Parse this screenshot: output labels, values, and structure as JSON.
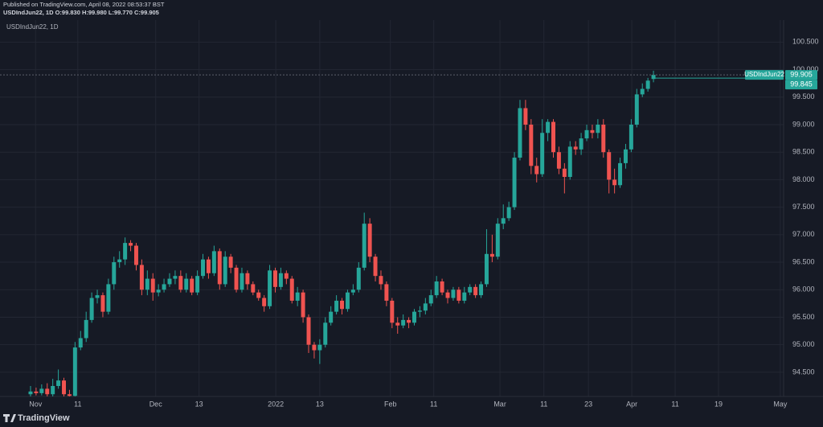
{
  "header": {
    "published": "Published on TradingView.com, April 08, 2022 08:53:37 BST",
    "legend": "USDIndJun22, 1D O:99.830 H:99.980 L:99.770 C:99.905"
  },
  "chart_data": {
    "type": "candlestick",
    "title": "USDIndJun22, 1D",
    "up_color": "#26a69a",
    "down_color": "#ef5350",
    "open": [
      94.1,
      94.15,
      94.12,
      94.2,
      94.1,
      94.25,
      94.35,
      94.1,
      94.07,
      94.95,
      95.12,
      95.45,
      95.85,
      95.9,
      95.6,
      96.1,
      96.5,
      96.55,
      96.85,
      96.8,
      96.45,
      96.0,
      96.2,
      95.95,
      96.0,
      96.1,
      96.2,
      96.25,
      96.0,
      96.2,
      95.95,
      96.25,
      96.55,
      96.3,
      96.7,
      96.1,
      96.6,
      96.4,
      96.0,
      96.3,
      96.1,
      95.95,
      95.85,
      95.7,
      96.35,
      96.05,
      96.3,
      96.2,
      95.8,
      95.95,
      95.5,
      95.0,
      94.9,
      95.0,
      95.4,
      95.6,
      95.8,
      95.65,
      95.95,
      96.0,
      96.4,
      97.2,
      96.6,
      96.25,
      96.1,
      95.8,
      95.4,
      95.35,
      95.45,
      95.4,
      95.6,
      95.62,
      95.75,
      95.9,
      96.15,
      95.95,
      95.85,
      96.0,
      95.8,
      95.95,
      96.05,
      95.9,
      96.1,
      96.65,
      96.6,
      97.2,
      97.3,
      97.5,
      98.4,
      99.3,
      99.0,
      98.25,
      98.1,
      98.85,
      99.05,
      98.5,
      98.2,
      98.05,
      98.6,
      98.55,
      98.75,
      98.9,
      98.85,
      99.0,
      98.5,
      98.0,
      97.9,
      98.3,
      98.55,
      99.0,
      99.55,
      99.65,
      99.83
    ],
    "high": [
      94.25,
      94.22,
      94.28,
      94.3,
      94.38,
      94.55,
      94.4,
      94.18,
      95.05,
      95.25,
      95.6,
      95.95,
      96.0,
      95.95,
      96.2,
      96.6,
      96.7,
      96.95,
      96.9,
      96.85,
      96.55,
      96.35,
      96.3,
      96.1,
      96.2,
      96.3,
      96.35,
      96.35,
      96.3,
      96.25,
      96.35,
      96.65,
      96.6,
      96.8,
      96.75,
      96.7,
      96.65,
      96.45,
      96.4,
      96.35,
      96.15,
      96.0,
      95.9,
      96.45,
      96.4,
      96.4,
      96.35,
      96.25,
      96.05,
      96.0,
      95.55,
      95.05,
      95.1,
      95.5,
      95.7,
      95.9,
      95.85,
      96.0,
      96.1,
      96.5,
      97.4,
      97.3,
      96.65,
      96.35,
      96.15,
      95.85,
      95.5,
      95.55,
      95.5,
      95.65,
      95.7,
      95.85,
      96.0,
      96.25,
      96.2,
      96.0,
      96.05,
      96.05,
      96.05,
      96.1,
      96.1,
      96.15,
      97.1,
      97.0,
      97.3,
      97.55,
      97.6,
      98.5,
      99.45,
      99.45,
      99.1,
      98.4,
      99.1,
      99.1,
      99.1,
      98.6,
      98.3,
      98.7,
      98.7,
      98.85,
      99.0,
      99.0,
      99.1,
      99.1,
      98.55,
      98.2,
      98.4,
      98.65,
      99.1,
      99.65,
      99.75,
      99.85,
      99.98
    ],
    "low": [
      94.05,
      94.08,
      94.08,
      94.06,
      94.06,
      94.2,
      94.06,
      94.06,
      94.06,
      94.9,
      95.05,
      95.4,
      95.75,
      95.5,
      95.55,
      96.0,
      96.4,
      96.45,
      96.7,
      96.35,
      95.9,
      95.9,
      95.8,
      95.88,
      95.95,
      96.05,
      96.1,
      95.95,
      95.95,
      95.9,
      95.9,
      96.2,
      96.2,
      96.25,
      96.0,
      96.05,
      96.3,
      95.95,
      95.95,
      96.0,
      95.9,
      95.8,
      95.6,
      95.65,
      95.95,
      96.0,
      96.1,
      95.75,
      95.7,
      95.4,
      94.85,
      94.75,
      94.65,
      94.95,
      95.35,
      95.55,
      95.55,
      95.6,
      95.9,
      95.95,
      96.35,
      96.5,
      96.15,
      96.0,
      95.7,
      95.3,
      95.2,
      95.3,
      95.3,
      95.35,
      95.5,
      95.55,
      95.7,
      95.85,
      95.9,
      95.75,
      95.8,
      95.75,
      95.75,
      95.9,
      95.85,
      95.85,
      96.05,
      96.5,
      96.55,
      97.1,
      97.25,
      97.45,
      98.35,
      98.9,
      98.1,
      97.95,
      98.05,
      98.7,
      98.4,
      98.1,
      97.75,
      98.0,
      98.45,
      98.45,
      98.7,
      98.75,
      98.75,
      98.4,
      97.75,
      97.75,
      97.85,
      98.2,
      98.5,
      98.95,
      99.5,
      99.6,
      99.77
    ],
    "close": [
      94.15,
      94.12,
      94.2,
      94.1,
      94.25,
      94.35,
      94.1,
      94.07,
      94.95,
      95.12,
      95.45,
      95.85,
      95.9,
      95.6,
      96.1,
      96.5,
      96.55,
      96.85,
      96.8,
      96.45,
      96.0,
      96.2,
      95.95,
      96.0,
      96.1,
      96.2,
      96.25,
      96.0,
      96.2,
      95.95,
      96.25,
      96.55,
      96.3,
      96.7,
      96.1,
      96.6,
      96.4,
      96.0,
      96.3,
      96.1,
      95.95,
      95.85,
      95.7,
      96.35,
      96.05,
      96.3,
      96.2,
      95.8,
      95.95,
      95.5,
      95.0,
      94.9,
      95.0,
      95.4,
      95.6,
      95.8,
      95.65,
      95.95,
      96.0,
      96.4,
      97.2,
      96.6,
      96.25,
      96.1,
      95.8,
      95.4,
      95.35,
      95.45,
      95.4,
      95.6,
      95.62,
      95.75,
      95.9,
      96.15,
      95.95,
      95.85,
      96.0,
      95.8,
      95.95,
      96.05,
      95.9,
      96.1,
      96.65,
      96.6,
      97.2,
      97.3,
      97.5,
      98.4,
      99.3,
      99.0,
      98.25,
      98.1,
      98.85,
      99.05,
      98.5,
      98.2,
      98.05,
      98.6,
      98.55,
      98.75,
      98.9,
      98.85,
      99.0,
      98.5,
      98.0,
      97.9,
      98.3,
      98.55,
      99.0,
      99.55,
      99.65,
      99.8,
      99.905
    ],
    "xlim": [
      -5.49,
      135.4
    ],
    "xticks": [
      {
        "value": 0.9,
        "label": "Nov"
      },
      {
        "value": 8.5,
        "label": "11"
      },
      {
        "value": 22.5,
        "label": "Dec"
      },
      {
        "value": 30.3,
        "label": "13"
      },
      {
        "value": 44.1,
        "label": "2022"
      },
      {
        "value": 52.0,
        "label": "13"
      },
      {
        "value": 64.7,
        "label": "Feb"
      },
      {
        "value": 72.5,
        "label": "11"
      },
      {
        "value": 84.4,
        "label": "Mar"
      },
      {
        "value": 92.3,
        "label": "11"
      },
      {
        "value": 100.3,
        "label": "23"
      },
      {
        "value": 108.1,
        "label": "Apr"
      },
      {
        "value": 115.9,
        "label": "11"
      },
      {
        "value": 123.7,
        "label": "19"
      },
      {
        "value": 134.8,
        "label": "May"
      }
    ],
    "ylim": [
      94.06,
      100.9
    ],
    "yticks": [
      {
        "value": 94.5,
        "label": "94.500"
      },
      {
        "value": 95.0,
        "label": "95.000"
      },
      {
        "value": 95.5,
        "label": "95.500"
      },
      {
        "value": 96.0,
        "label": "96.000"
      },
      {
        "value": 96.5,
        "label": "96.500"
      },
      {
        "value": 97.0,
        "label": "97.000"
      },
      {
        "value": 97.5,
        "label": "97.500"
      },
      {
        "value": 98.0,
        "label": "98.000"
      },
      {
        "value": 98.5,
        "label": "98.500"
      },
      {
        "value": 99.0,
        "label": "99.000"
      },
      {
        "value": 99.5,
        "label": "99.500"
      },
      {
        "value": 100.0,
        "label": "100.000"
      },
      {
        "value": 100.5,
        "label": "100.500"
      }
    ],
    "grid": true,
    "price_labels": [
      {
        "value": 99.905,
        "label": "99.905",
        "name": "USDIndJun22"
      },
      {
        "value": 99.845,
        "label": "99.845"
      }
    ]
  },
  "footer": {
    "brand": "TradingView"
  }
}
